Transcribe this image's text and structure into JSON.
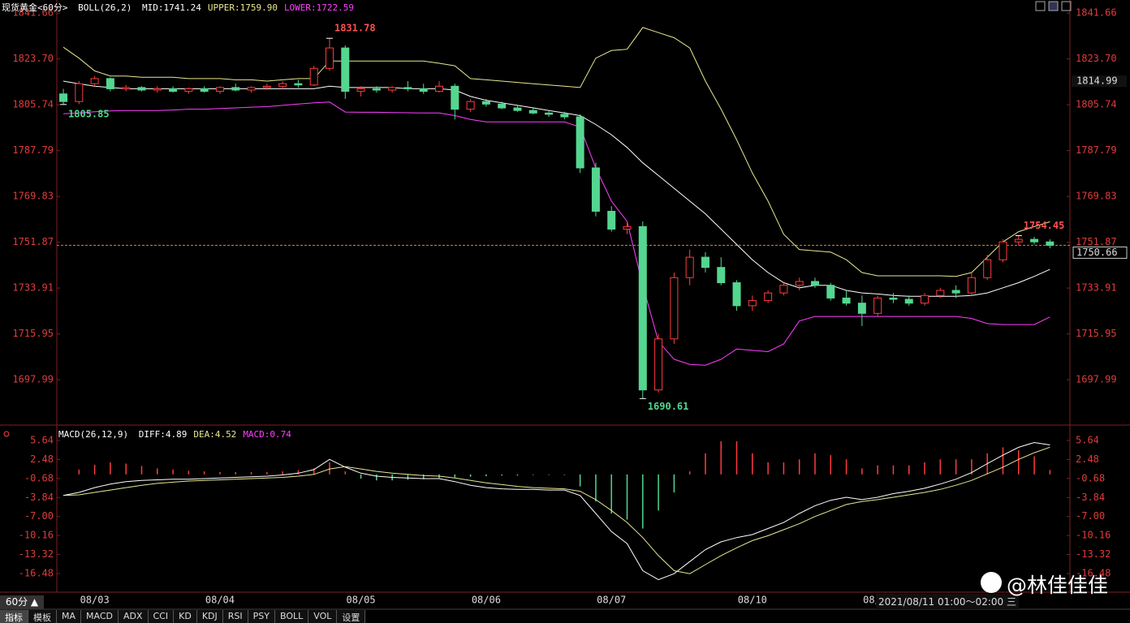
{
  "chart_data": [
    {
      "type": "candlestick",
      "title": "现货黄金<60分>",
      "indicator": "BOLL(26,2)",
      "categories": [
        null,
        null,
        "08/03",
        null,
        null,
        null,
        null,
        null,
        null,
        null,
        "08/04",
        null,
        null,
        null,
        null,
        null,
        null,
        null,
        null,
        "08/05",
        null,
        null,
        null,
        null,
        null,
        null,
        null,
        "08/06",
        null,
        null,
        null,
        null,
        null,
        null,
        null,
        "08/07",
        null,
        null,
        null,
        null,
        null,
        null,
        null,
        null,
        "08/10",
        null,
        null,
        null,
        null,
        null,
        null,
        null,
        "08/11",
        null,
        null,
        null,
        null,
        null,
        null,
        null,
        null,
        null,
        null,
        null
      ],
      "open": [
        1810,
        1807,
        1814,
        1816,
        1812,
        1812.5,
        1811.5,
        1812,
        1811,
        1812,
        1811,
        1812.5,
        1811.5,
        1812.5,
        1813,
        1814,
        1813.5,
        1820,
        1828,
        1811,
        1812,
        1811.5,
        1812.5,
        1812,
        1811,
        1813,
        1804,
        1807,
        1806,
        1804.5,
        1803.5,
        1802.5,
        1802,
        1801,
        1781,
        1764,
        1757,
        1758,
        1694,
        1714,
        1738,
        1746,
        1742,
        1736,
        1727,
        1729,
        1732,
        1735,
        1736.5,
        1735,
        1730,
        1728,
        1724,
        1730,
        1729.5,
        1728,
        1731,
        1733,
        1732,
        1738,
        1745,
        1752,
        1753,
        1752
      ],
      "high": [
        1812,
        1815,
        1817,
        1816.5,
        1813.5,
        1813,
        1813,
        1813,
        1812.5,
        1813,
        1813,
        1814,
        1813,
        1814,
        1815,
        1815.5,
        1821,
        1831.78,
        1829,
        1813,
        1813,
        1813,
        1815,
        1814,
        1815,
        1814,
        1808,
        1808,
        1807,
        1805.5,
        1804.5,
        1803.5,
        1803,
        1802,
        1783,
        1766,
        1760,
        1760,
        1716,
        1740,
        1749,
        1748,
        1746,
        1737,
        1731,
        1733,
        1736,
        1738,
        1738,
        1736,
        1733,
        1731,
        1731,
        1732,
        1731,
        1732,
        1734,
        1735,
        1740,
        1747,
        1753,
        1754.45,
        1754,
        1753
      ],
      "low": [
        1805.85,
        1806,
        1813,
        1811,
        1811,
        1811,
        1810.5,
        1810.5,
        1810,
        1810.5,
        1810,
        1811,
        1810.5,
        1811.5,
        1812,
        1812.5,
        1813,
        1819,
        1808,
        1809,
        1810.5,
        1810.5,
        1811,
        1810,
        1810.5,
        1800,
        1803,
        1805,
        1804,
        1803,
        1802,
        1801,
        1800,
        1779,
        1762,
        1756,
        1755,
        1690.61,
        1693,
        1712,
        1735,
        1740,
        1735,
        1725,
        1725,
        1728,
        1731,
        1733,
        1734,
        1729,
        1727,
        1719,
        1723,
        1728,
        1727,
        1727,
        1730,
        1730,
        1731,
        1737,
        1744,
        1750.5,
        1751,
        1749.5
      ],
      "close": [
        1807,
        1814,
        1816,
        1812,
        1812.5,
        1811.5,
        1812,
        1811,
        1812,
        1811,
        1812.5,
        1811.5,
        1812.5,
        1813,
        1814,
        1813.5,
        1820,
        1828,
        1811,
        1812,
        1811.5,
        1812.5,
        1812,
        1811,
        1813,
        1804,
        1807,
        1806,
        1804.5,
        1803.5,
        1802.5,
        1802,
        1801,
        1781,
        1764,
        1757,
        1758,
        1694,
        1714,
        1738,
        1746,
        1742,
        1736,
        1727,
        1729,
        1732,
        1735,
        1736.5,
        1735,
        1730,
        1728,
        1724,
        1730,
        1729.5,
        1728,
        1731,
        1733,
        1732,
        1738,
        1745,
        1752,
        1753,
        1752,
        1750.66
      ],
      "up_color": "#ff3c3c",
      "down_color": "#54d690",
      "series": [
        {
          "name": "MID:1741.24",
          "color": "#ffffff",
          "values": [
            1815,
            1814,
            1813,
            1812.5,
            1812,
            1812,
            1812,
            1812,
            1812,
            1812,
            1812,
            1812,
            1812,
            1812,
            1812,
            1812,
            1812,
            1813,
            1812.5,
            1812.5,
            1812.5,
            1812.5,
            1812,
            1812,
            1812,
            1811.5,
            1809,
            1807.5,
            1806.5,
            1805.5,
            1804.5,
            1803.5,
            1802.5,
            1801.5,
            1798,
            1794,
            1789,
            1783,
            1778,
            1773,
            1768,
            1763,
            1757,
            1751,
            1745,
            1740,
            1736,
            1734,
            1735,
            1735,
            1733,
            1732,
            1731.6,
            1731,
            1730.7,
            1730.7,
            1730.7,
            1730.7,
            1731,
            1732,
            1734,
            1736,
            1738.5,
            1741.24
          ]
        },
        {
          "name": "UPPER:1759.90",
          "color": "#e8e890",
          "values": [
            1828.3,
            1824,
            1819,
            1817,
            1817,
            1816.5,
            1816.5,
            1816.5,
            1816,
            1816,
            1816,
            1815.5,
            1815.5,
            1815,
            1815.5,
            1816,
            1816,
            1822.9,
            1822.9,
            1822.9,
            1822.9,
            1822.9,
            1822.9,
            1822.9,
            1822,
            1821,
            1816,
            1815.5,
            1815,
            1814.5,
            1814,
            1813.5,
            1813,
            1812.5,
            1824,
            1827,
            1827.5,
            1836,
            1834,
            1832,
            1828,
            1815,
            1804,
            1792,
            1779,
            1768,
            1755,
            1749,
            1748.5,
            1748,
            1745,
            1740,
            1738.7,
            1738.7,
            1738.7,
            1738.7,
            1738.7,
            1738.5,
            1740,
            1746,
            1752,
            1756,
            1758,
            1759.9
          ]
        },
        {
          "name": "LOWER:1722.59",
          "color": "#ff40ff",
          "values": [
            1802.2,
            1802.5,
            1803,
            1803.3,
            1803.5,
            1803.5,
            1803.5,
            1803.7,
            1804,
            1804,
            1804.3,
            1804.5,
            1804.8,
            1805,
            1805.5,
            1806,
            1806.5,
            1806.8,
            1802.9,
            1802.8,
            1802.8,
            1802.7,
            1802.6,
            1802.5,
            1802.5,
            1801.5,
            1800,
            1799,
            1799,
            1799,
            1799,
            1799,
            1799,
            1797,
            1781,
            1768,
            1760,
            1735,
            1713,
            1706,
            1704,
            1703.7,
            1706,
            1710,
            1709.5,
            1709,
            1712,
            1721,
            1722.8,
            1722.8,
            1722.8,
            1722.8,
            1722.8,
            1722.8,
            1722.8,
            1722.8,
            1722.8,
            1722.8,
            1722,
            1720,
            1719.6,
            1719.6,
            1719.6,
            1722.59
          ]
        }
      ],
      "ylim": [
        1681.5,
        1845.2
      ],
      "yticks": [
        1841.66,
        {
          "value": 1823.7,
          "label": "1823.70"
        },
        1805.74,
        1787.79,
        1769.83,
        1751.87,
        1733.91,
        1715.95,
        1697.99
      ],
      "marker": 1814.99
    },
    {
      "type": "macd",
      "title": "MACD(26,12,9)",
      "up_color": "#ff3c3c",
      "down_color": "#54d690",
      "series": [
        {
          "name": "DIFF:4.89",
          "color": "#ffffff",
          "kind": "line",
          "values": [
            -3.5,
            -3,
            -2.2,
            -1.6,
            -1.2,
            -1,
            -0.9,
            -0.8,
            -0.8,
            -0.7,
            -0.6,
            -0.5,
            -0.4,
            -0.3,
            -0.1,
            0.2,
            0.8,
            2.5,
            1.2,
            0.2,
            -0.3,
            -0.5,
            -0.6,
            -0.7,
            -0.7,
            -1.2,
            -1.8,
            -2.2,
            -2.4,
            -2.5,
            -2.5,
            -2.6,
            -2.6,
            -3.5,
            -6.5,
            -9.5,
            -11.5,
            -16,
            -17.5,
            -16.5,
            -14.5,
            -12.5,
            -11.2,
            -10.5,
            -10,
            -9,
            -8,
            -6.5,
            -5.2,
            -4.3,
            -3.8,
            -4.2,
            -3.8,
            -3.2,
            -2.8,
            -2.3,
            -1.6,
            -0.8,
            0.3,
            1.8,
            3.2,
            4.5,
            5.3,
            4.89
          ]
        },
        {
          "name": "DEA:4.52",
          "color": "#e8e890",
          "kind": "line",
          "values": [
            -3.5,
            -3.4,
            -3,
            -2.6,
            -2.2,
            -1.8,
            -1.5,
            -1.3,
            -1.1,
            -1,
            -0.9,
            -0.8,
            -0.7,
            -0.6,
            -0.5,
            -0.3,
            0,
            0.9,
            1.3,
            0.9,
            0.5,
            0.2,
            0,
            -0.2,
            -0.3,
            -0.6,
            -1,
            -1.4,
            -1.7,
            -2,
            -2.2,
            -2.3,
            -2.4,
            -2.8,
            -4.2,
            -6,
            -8,
            -10.5,
            -13.5,
            -16,
            -16.5,
            -15,
            -13.5,
            -12.2,
            -11,
            -10.2,
            -9.2,
            -8.2,
            -7,
            -6,
            -5,
            -4.5,
            -4.2,
            -3.8,
            -3.4,
            -3,
            -2.5,
            -1.8,
            -1,
            0.1,
            1.2,
            2.5,
            3.6,
            4.52
          ]
        },
        {
          "name": "MACD:0.74",
          "color": "#ff40ff",
          "kind": "bar",
          "values": [
            0,
            0.8,
            1.6,
            2,
            1.8,
            1.4,
            1,
            0.8,
            0.6,
            0.5,
            0.4,
            0.4,
            0.4,
            0.4,
            0.5,
            0.7,
            1,
            2,
            0.5,
            -0.7,
            -1,
            -1,
            -0.9,
            -0.8,
            -0.6,
            -0.5,
            -0.4,
            -0.3,
            -0.2,
            -0.2,
            -0.1,
            -0.1,
            -0.1,
            -2,
            -4.5,
            -6.5,
            -7.5,
            -9,
            -6,
            -3,
            0.5,
            3.5,
            5.5,
            5.5,
            3.5,
            2,
            2,
            2.5,
            3.5,
            3.2,
            2.5,
            1,
            1.5,
            1.5,
            1.5,
            2,
            2.5,
            2.5,
            2.5,
            3.5,
            4.5,
            4,
            3,
            0.74
          ]
        }
      ],
      "ylim": [
        -19.58,
        7.66
      ],
      "yticks": [
        5.64,
        2.48,
        {
          "value": -0.68,
          "label": "-0.68"
        },
        -3.84,
        {
          "value": -7,
          "label": "-7.00"
        },
        -10.16,
        -13.32,
        -16.48
      ]
    }
  ],
  "toolbar": {
    "period": "60分 ▲",
    "tabs": [
      "指标",
      "模板",
      "MA",
      "MACD",
      "ADX",
      "CCI",
      "KD",
      "KDJ",
      "RSI",
      "PSY",
      "BOLL",
      "VOL",
      "设置"
    ]
  },
  "status": "2021/08/11 01:00～02:00 三",
  "watermark": "@林佳佳佳"
}
